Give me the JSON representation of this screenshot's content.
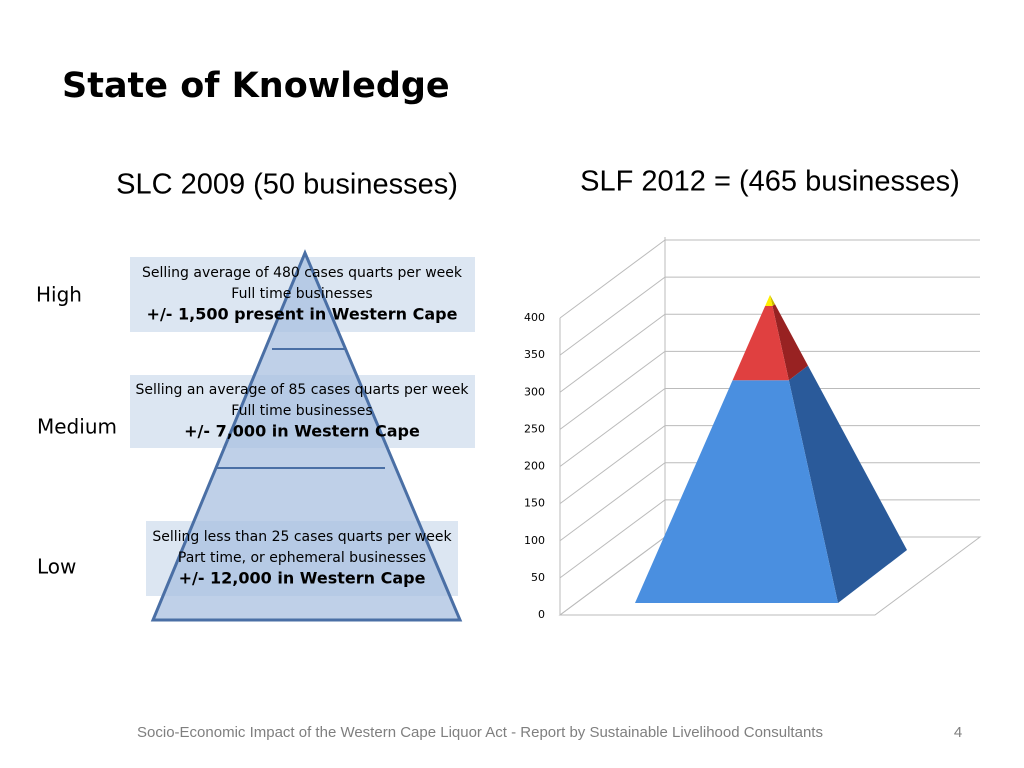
{
  "title": "State of Knowledge",
  "left": {
    "heading": "SLC 2009 (50 businesses)",
    "levels": [
      {
        "label": "High",
        "lines": [
          "Selling average of 480 cases quarts per week",
          "Full time businesses",
          "+/- 1,500 present in Western Cape"
        ]
      },
      {
        "label": "Medium",
        "lines": [
          "Selling an average of 85 cases quarts per week",
          "Full time businesses",
          "+/- 7,000 in Western Cape"
        ]
      },
      {
        "label": "Low",
        "lines": [
          "Selling less than 25 cases quarts per week",
          "Part time, or ephemeral businesses",
          "+/- 12,000 in Western Cape"
        ]
      }
    ]
  },
  "chart_data": {
    "type": "pyramid",
    "title": "SLF 2012 = (465 businesses)",
    "ylim": [
      0,
      400
    ],
    "yticks": [
      0,
      50,
      100,
      150,
      200,
      250,
      300,
      350,
      400
    ],
    "grid": true,
    "values": [
      300,
      100,
      15
    ],
    "colors": [
      "#4a8fe0",
      "#e04040",
      "#ffee00"
    ],
    "side_colors": [
      "#2a5a9a",
      "#982222",
      "#c8b800"
    ]
  },
  "footer": {
    "text": "Socio-Economic Impact of the Western Cape Liquor Act - Report by Sustainable Livelihood Consultants",
    "page": "4"
  }
}
